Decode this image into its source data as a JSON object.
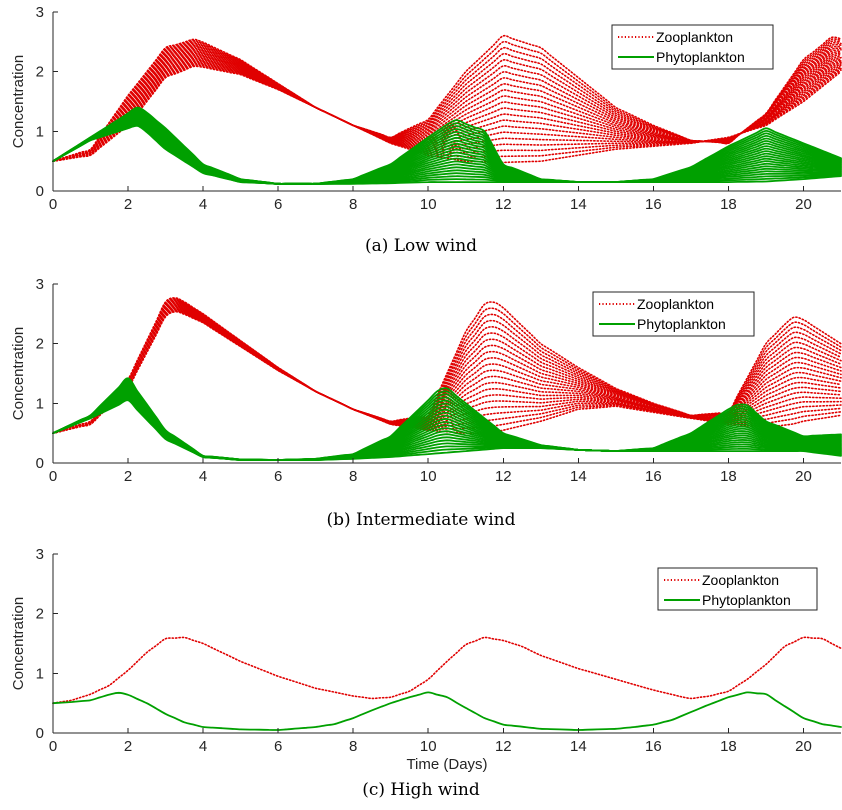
{
  "colors": {
    "zooplankton": "#e00000",
    "phytoplankton": "#00a000",
    "axis": "#262626"
  },
  "chart_data": [
    {
      "type": "line",
      "caption": "(a) Low wind",
      "xlabel": "",
      "ylabel": "Concentration",
      "xlim": [
        0,
        21
      ],
      "ylim": [
        0,
        3
      ],
      "xticks": [
        "0",
        "2",
        "4",
        "6",
        "8",
        "10",
        "12",
        "14",
        "16",
        "18",
        "20"
      ],
      "yticks": [
        "0",
        "1",
        "2",
        "3"
      ],
      "legend": {
        "position": "top-right",
        "entries": [
          "Zooplankton",
          "Phytoplankton"
        ]
      },
      "ensemble": 22,
      "series": [
        {
          "name": "Zooplankton",
          "style": "dotted",
          "color": "#e00000",
          "first": {
            "x": [
              0,
              1,
              2,
              3,
              3.8,
              5,
              6,
              7,
              8,
              9,
              10,
              11,
              12,
              13,
              14,
              15,
              16,
              17,
              18,
              19,
              20,
              20.8,
              21
            ],
            "y": [
              0.5,
              0.6,
              1.1,
              1.9,
              2.1,
              1.95,
              1.7,
              1.4,
              1.1,
              0.8,
              0.6,
              0.5,
              0.48,
              0.5,
              0.6,
              0.7,
              0.75,
              0.8,
              0.9,
              1.1,
              1.5,
              1.9,
              2.0
            ]
          },
          "last": {
            "x": [
              0,
              1,
              2,
              3,
              3.8,
              5,
              6,
              7,
              8,
              9,
              10,
              11,
              12,
              13,
              14,
              15,
              16,
              17,
              18,
              19,
              20,
              20.8,
              21
            ],
            "y": [
              0.5,
              0.7,
              1.6,
              2.4,
              2.55,
              2.2,
              1.8,
              1.4,
              1.1,
              0.9,
              1.2,
              2.0,
              2.6,
              2.4,
              1.9,
              1.4,
              1.1,
              0.85,
              0.8,
              1.3,
              2.2,
              2.6,
              2.55
            ]
          }
        },
        {
          "name": "Phytoplankton",
          "style": "solid",
          "color": "#00a000",
          "first": {
            "x": [
              0,
              1,
              2,
              2.3,
              3,
              4,
              5,
              6,
              7,
              8,
              9,
              10,
              11,
              12,
              13,
              14,
              15,
              16,
              17,
              18,
              19,
              20,
              21
            ],
            "y": [
              0.5,
              0.85,
              1.05,
              1.1,
              0.7,
              0.3,
              0.15,
              0.12,
              0.12,
              0.12,
              0.13,
              0.15,
              0.15,
              0.15,
              0.15,
              0.15,
              0.15,
              0.15,
              0.15,
              0.15,
              0.16,
              0.2,
              0.25
            ]
          },
          "last": {
            "x": [
              0,
              1,
              2,
              2.3,
              3,
              4,
              5,
              6,
              7,
              8,
              9,
              10,
              10.7,
              11.5,
              12,
              13,
              14,
              15,
              16,
              17,
              18,
              19,
              20,
              21
            ],
            "y": [
              0.5,
              0.9,
              1.3,
              1.42,
              1.05,
              0.45,
              0.2,
              0.12,
              0.12,
              0.2,
              0.45,
              0.9,
              1.2,
              1.0,
              0.45,
              0.2,
              0.15,
              0.15,
              0.2,
              0.4,
              0.75,
              1.05,
              0.8,
              0.55
            ]
          }
        }
      ]
    },
    {
      "type": "line",
      "caption": "(b) Intermediate wind",
      "xlabel": "",
      "ylabel": "Concentration",
      "xlim": [
        0,
        21
      ],
      "ylim": [
        0,
        3
      ],
      "xticks": [
        "0",
        "2",
        "4",
        "6",
        "8",
        "10",
        "12",
        "14",
        "16",
        "18",
        "20"
      ],
      "yticks": [
        "0",
        "1",
        "2",
        "3"
      ],
      "legend": {
        "position": "top-right",
        "entries": [
          "Zooplankton",
          "Phytoplankton"
        ]
      },
      "ensemble": 22,
      "series": [
        {
          "name": "Zooplankton",
          "style": "dotted",
          "color": "#e00000",
          "first": {
            "x": [
              0,
              1,
              2,
              3,
              3.3,
              4,
              5,
              6,
              7,
              8,
              9,
              10,
              11,
              11.6,
              12,
              13,
              14,
              15,
              16,
              17,
              18,
              19,
              19.7,
              20,
              21
            ],
            "y": [
              0.5,
              0.65,
              1.25,
              2.45,
              2.55,
              2.35,
              1.95,
              1.55,
              1.2,
              0.9,
              0.65,
              0.55,
              0.5,
              0.5,
              0.55,
              0.7,
              0.9,
              0.95,
              0.85,
              0.75,
              0.65,
              0.6,
              0.65,
              0.7,
              0.8
            ]
          },
          "last": {
            "x": [
              0,
              1,
              2,
              3,
              3.3,
              4,
              5,
              6,
              7,
              8,
              9,
              10,
              11,
              11.6,
              12,
              13,
              14,
              15,
              16,
              17,
              18,
              19,
              19.7,
              20,
              21
            ],
            "y": [
              0.5,
              0.7,
              1.4,
              2.7,
              2.78,
              2.5,
              2.05,
              1.6,
              1.2,
              0.9,
              0.7,
              0.8,
              2.2,
              2.75,
              2.6,
              2.0,
              1.6,
              1.25,
              1.0,
              0.8,
              0.85,
              2.0,
              2.45,
              2.4,
              2.0
            ]
          }
        },
        {
          "name": "Phytoplankton",
          "style": "solid",
          "color": "#00a000",
          "first": {
            "x": [
              0,
              1,
              2,
              3,
              4,
              5,
              6,
              7,
              8,
              9,
              10,
              11,
              12,
              13,
              14,
              15,
              16,
              17,
              18,
              19,
              20,
              21
            ],
            "y": [
              0.5,
              0.75,
              1.05,
              0.4,
              0.1,
              0.05,
              0.05,
              0.05,
              0.07,
              0.1,
              0.15,
              0.2,
              0.25,
              0.25,
              0.22,
              0.2,
              0.2,
              0.2,
              0.2,
              0.2,
              0.2,
              0.12
            ]
          },
          "last": {
            "x": [
              0,
              1,
              2,
              3,
              4,
              5,
              6,
              7,
              8,
              9,
              10,
              10.4,
              11,
              12,
              13,
              14,
              15,
              16,
              17,
              18,
              18.4,
              19,
              20,
              21
            ],
            "y": [
              0.5,
              0.8,
              1.42,
              0.55,
              0.12,
              0.06,
              0.05,
              0.07,
              0.15,
              0.45,
              1.05,
              1.3,
              1.0,
              0.5,
              0.3,
              0.22,
              0.2,
              0.25,
              0.5,
              0.9,
              1.02,
              0.7,
              0.45,
              0.48
            ]
          }
        }
      ]
    },
    {
      "type": "line",
      "caption": "(c) High wind",
      "xlabel": "Time (Days)",
      "ylabel": "Concentration",
      "xlim": [
        0,
        21
      ],
      "ylim": [
        0,
        3
      ],
      "xticks": [
        "0",
        "2",
        "4",
        "6",
        "8",
        "10",
        "12",
        "14",
        "16",
        "18",
        "20"
      ],
      "yticks": [
        "0",
        "1",
        "2",
        "3"
      ],
      "legend": {
        "position": "top-right",
        "entries": [
          "Zooplankton",
          "Phytoplankton"
        ]
      },
      "ensemble": 1,
      "series": [
        {
          "name": "Zooplankton",
          "style": "dotted",
          "color": "#e00000",
          "first": {
            "x": [
              0,
              0.5,
              1,
              1.5,
              2,
              2.5,
              3,
              3.5,
              4,
              5,
              6,
              7,
              8,
              8.5,
              9,
              9.5,
              10,
              10.5,
              11,
              11.5,
              12,
              12.5,
              13,
              14,
              15,
              16,
              16.8,
              17,
              17.5,
              18,
              18.5,
              19,
              19.5,
              20,
              20.5,
              21
            ],
            "y": [
              0.5,
              0.55,
              0.65,
              0.8,
              1.05,
              1.35,
              1.58,
              1.6,
              1.5,
              1.2,
              0.95,
              0.75,
              0.62,
              0.58,
              0.6,
              0.7,
              0.9,
              1.2,
              1.48,
              1.6,
              1.55,
              1.45,
              1.3,
              1.08,
              0.9,
              0.72,
              0.6,
              0.58,
              0.62,
              0.7,
              0.9,
              1.15,
              1.45,
              1.6,
              1.58,
              1.42
            ]
          },
          "last": null
        },
        {
          "name": "Phytoplankton",
          "style": "solid",
          "color": "#00a000",
          "first": {
            "x": [
              0,
              0.5,
              1,
              1.7,
              2,
              2.5,
              3,
              3.5,
              4,
              5,
              6,
              7,
              7.5,
              8,
              8.5,
              9,
              9.5,
              10,
              10.5,
              11,
              11.5,
              12,
              13,
              14,
              15,
              15.5,
              16,
              16.5,
              17,
              17.5,
              18,
              18.5,
              19,
              19.5,
              20,
              20.5,
              21
            ],
            "y": [
              0.5,
              0.52,
              0.55,
              0.68,
              0.64,
              0.5,
              0.32,
              0.18,
              0.1,
              0.06,
              0.05,
              0.1,
              0.15,
              0.25,
              0.38,
              0.5,
              0.6,
              0.68,
              0.6,
              0.42,
              0.25,
              0.14,
              0.07,
              0.05,
              0.07,
              0.1,
              0.14,
              0.22,
              0.35,
              0.48,
              0.6,
              0.68,
              0.65,
              0.45,
              0.25,
              0.15,
              0.1
            ]
          },
          "last": null
        }
      ]
    }
  ]
}
